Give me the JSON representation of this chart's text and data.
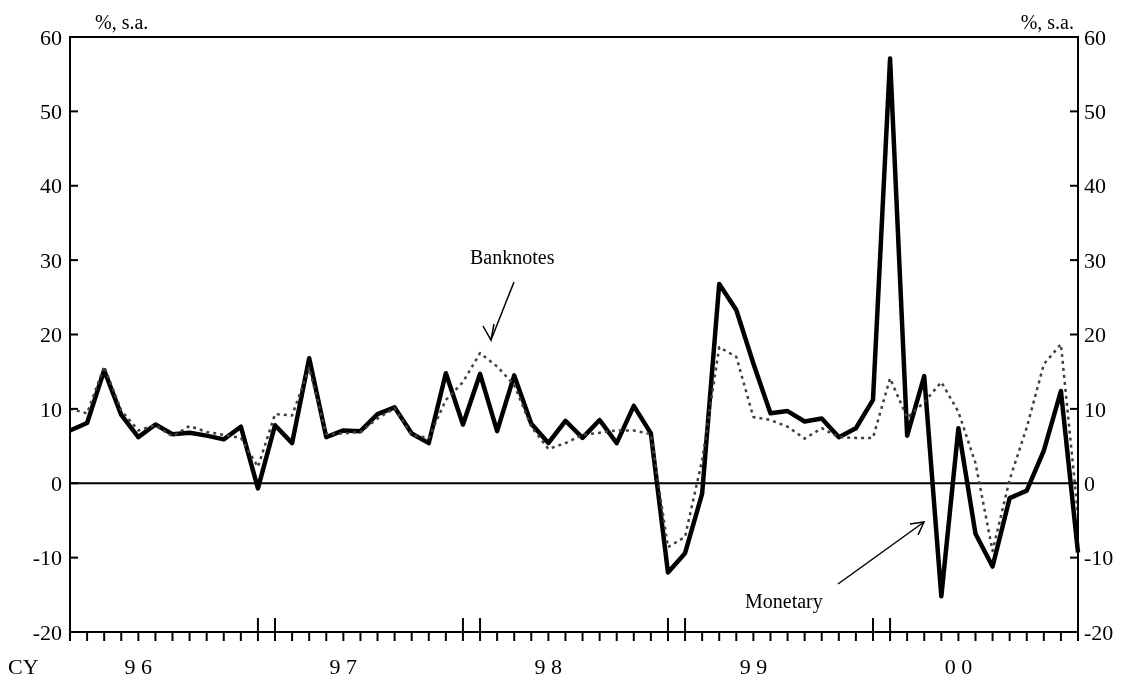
{
  "chart_data": {
    "type": "line",
    "ylabel": "%, s.a.",
    "y2label": "%, s.a.",
    "xlabel": "CY",
    "categories": [
      null,
      null,
      null,
      null,
      "9 6",
      null,
      null,
      null,
      null,
      null,
      null,
      null,
      null,
      null,
      null,
      null,
      "9 7",
      null,
      null,
      null,
      null,
      null,
      null,
      null,
      null,
      null,
      null,
      null,
      "9 8",
      null,
      null,
      null,
      null,
      null,
      null,
      null,
      null,
      null,
      null,
      null,
      "9 9",
      null,
      null,
      null,
      null,
      null,
      null,
      null,
      null,
      null,
      null,
      null,
      "0 0",
      null,
      null,
      null,
      null,
      null,
      null,
      null
    ],
    "series": [
      {
        "color": "#000000",
        "line_style": "solid",
        "values": [
          7.1,
          8.1,
          15.2,
          9.2,
          6.2,
          7.9,
          6.6,
          6.8,
          6.4,
          5.9,
          7.6,
          -0.7,
          7.8,
          5.4,
          16.8,
          6.2,
          7.1,
          7.0,
          9.3,
          10.2,
          6.7,
          5.4,
          14.8,
          7.9,
          14.7,
          7.0,
          14.5,
          8.0,
          5.4,
          8.4,
          6.1,
          8.5,
          5.4,
          10.4,
          6.7,
          -12.0,
          -9.4,
          -1.4,
          26.8,
          23.3,
          16.1,
          9.4,
          9.7,
          8.3,
          8.7,
          6.2,
          7.4,
          11.2,
          57.1,
          6.4,
          14.4,
          -15.2,
          7.4,
          -6.8,
          -11.2,
          -2.0,
          -1.0,
          4.4,
          12.4,
          -9.3
        ]
      },
      {
        "color": "#404040",
        "line_style": "dotted",
        "values": [
          10.0,
          9.4,
          15.7,
          9.8,
          7.1,
          7.8,
          6.3,
          7.7,
          6.9,
          6.5,
          6.1,
          2.2,
          9.3,
          9.1,
          15.5,
          6.6,
          6.7,
          6.9,
          8.7,
          10.1,
          6.5,
          6.1,
          11.2,
          13.6,
          17.5,
          15.7,
          13.2,
          7.6,
          4.6,
          5.4,
          6.5,
          6.8,
          7.1,
          7.1,
          6.6,
          -8.6,
          -7.2,
          3.1,
          18.3,
          17.0,
          8.9,
          8.5,
          7.6,
          6.0,
          7.4,
          6.2,
          6.1,
          6.1,
          14.1,
          8.8,
          10.9,
          13.6,
          9.6,
          2.7,
          -9.1,
          0.5,
          7.5,
          16.0,
          18.7,
          -4.3
        ]
      }
    ],
    "ylim": [
      -20,
      60
    ],
    "yticks": [
      -20,
      -10,
      0,
      10,
      20,
      30,
      40,
      50,
      60
    ],
    "y2lim": [
      -20,
      60
    ],
    "y2ticks": [
      -20,
      -10,
      0,
      10,
      20,
      30,
      40,
      50,
      60
    ],
    "ref_lines": [
      {
        "axis": "y",
        "value": 0,
        "color": "#000000",
        "line_style": "solid"
      }
    ],
    "annotations": [
      "Banknotes",
      "Monetary"
    ],
    "grid": false
  }
}
